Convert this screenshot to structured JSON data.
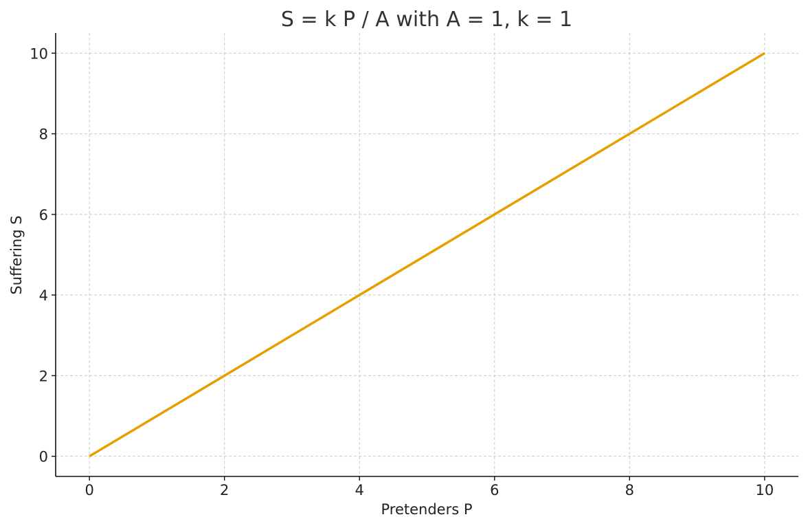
{
  "chart_data": {
    "type": "line",
    "title": "S = k P / A  with  A = 1,  k = 1",
    "xlabel": "Pretenders P",
    "ylabel": "Suffering S",
    "xlim": [
      -0.5,
      10.5
    ],
    "ylim": [
      -0.5,
      10.5
    ],
    "xticks": [
      0,
      2,
      4,
      6,
      8,
      10
    ],
    "yticks": [
      0,
      2,
      4,
      6,
      8,
      10
    ],
    "xtick_labels": [
      "0",
      "2",
      "4",
      "6",
      "8",
      "10"
    ],
    "ytick_labels": [
      "0",
      "2",
      "4",
      "6",
      "8",
      "10"
    ],
    "grid": true,
    "series": [
      {
        "color": "#E69F00",
        "x": [
          0,
          10
        ],
        "y": [
          0,
          10
        ]
      }
    ]
  }
}
